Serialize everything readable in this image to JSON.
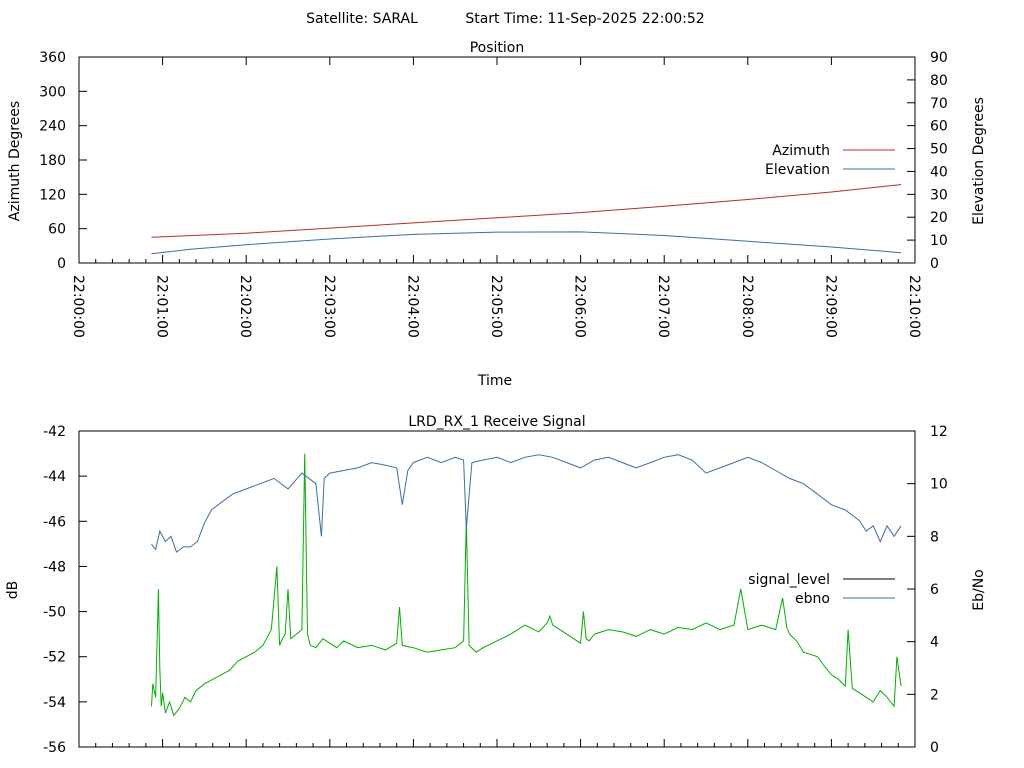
{
  "header": {
    "satellite_label": "Satellite: SARAL",
    "start_time_label": "Start Time: 11-Sep-2025 22:00:52"
  },
  "chart_data": [
    {
      "type": "line",
      "title": "Position",
      "xlabel": "Time",
      "ylabel": "Azimuth Degrees",
      "y2label": "Elevation Degrees",
      "x_ticks": [
        "22:00:00",
        "22:01:00",
        "22:02:00",
        "22:03:00",
        "22:04:00",
        "22:05:00",
        "22:06:00",
        "22:07:00",
        "22:08:00",
        "22:09:00",
        "22:10:00"
      ],
      "xlim_seconds_since_2200": [
        0,
        600
      ],
      "ylim": [
        0,
        360
      ],
      "y_ticks": [
        "0",
        "60",
        "120",
        "180",
        "240",
        "300",
        "360"
      ],
      "y2lim": [
        0,
        90
      ],
      "y2_ticks": [
        "0",
        "10",
        "20",
        "30",
        "40",
        "50",
        "60",
        "70",
        "80",
        "90"
      ],
      "legend_position": "right",
      "grid": false,
      "series": [
        {
          "name": "Azimuth",
          "axis": "left",
          "color": "#b03030",
          "x": [
            52,
            120,
            180,
            240,
            300,
            360,
            420,
            480,
            540,
            590
          ],
          "values": [
            45,
            52,
            61,
            70,
            79,
            88,
            99,
            111,
            124,
            137
          ]
        },
        {
          "name": "Elevation",
          "axis": "right",
          "color": "#3a6fa5",
          "x": [
            52,
            80,
            120,
            180,
            240,
            300,
            360,
            420,
            480,
            540,
            590
          ],
          "values": [
            4,
            6,
            8,
            10.5,
            12.5,
            13.5,
            13.6,
            12,
            9.5,
            7,
            4.5
          ]
        }
      ]
    },
    {
      "type": "line",
      "title": "LRD_RX_1 Receive Signal",
      "ylabel": "dB",
      "y2label": "Eb/No",
      "xlim_seconds_since_2200": [
        0,
        600
      ],
      "ylim": [
        -56,
        -42
      ],
      "y_ticks": [
        "-56",
        "-54",
        "-52",
        "-50",
        "-48",
        "-46",
        "-44",
        "-42"
      ],
      "y2lim": [
        0,
        12
      ],
      "y2_ticks": [
        "0",
        "2",
        "4",
        "6",
        "8",
        "10",
        "12"
      ],
      "legend_position": "right",
      "grid": false,
      "series": [
        {
          "name": "signal_level",
          "axis": "left",
          "color": "#00b000",
          "legend_color": "#000000",
          "x": [
            52,
            53,
            55,
            56,
            57,
            58,
            59,
            60,
            62,
            65,
            68,
            72,
            76,
            80,
            84,
            90,
            96,
            102,
            108,
            114,
            120,
            126,
            132,
            138,
            142,
            144,
            146,
            148,
            150,
            152,
            156,
            160,
            162,
            164,
            166,
            170,
            175,
            180,
            185,
            190,
            200,
            210,
            220,
            228,
            230,
            232,
            240,
            250,
            260,
            270,
            276,
            278,
            280,
            285,
            290,
            300,
            310,
            320,
            330,
            336,
            338,
            340,
            345,
            350,
            355,
            360,
            362,
            364,
            366,
            370,
            380,
            390,
            400,
            410,
            420,
            430,
            440,
            450,
            460,
            470,
            475,
            480,
            490,
            500,
            505,
            508,
            510,
            515,
            520,
            530,
            536,
            540,
            545,
            550,
            552,
            555,
            560,
            565,
            570,
            575,
            580,
            585,
            587,
            590
          ],
          "values": [
            -54.2,
            -53.2,
            -53.8,
            -51.5,
            -49.0,
            -52.5,
            -54.2,
            -53.6,
            -54.5,
            -54.0,
            -54.6,
            -54.3,
            -53.8,
            -54.0,
            -53.5,
            -53.2,
            -53.0,
            -52.8,
            -52.6,
            -52.2,
            -52.0,
            -51.8,
            -51.5,
            -50.8,
            -48.0,
            -51.5,
            -51.2,
            -51.0,
            -49.0,
            -51.2,
            -51.0,
            -50.8,
            -43.0,
            -51.0,
            -51.5,
            -51.6,
            -51.2,
            -51.4,
            -51.6,
            -51.3,
            -51.6,
            -51.5,
            -51.7,
            -51.4,
            -49.8,
            -51.5,
            -51.6,
            -51.8,
            -51.7,
            -51.6,
            -51.3,
            -46.0,
            -51.5,
            -51.8,
            -51.6,
            -51.3,
            -51.0,
            -50.6,
            -50.9,
            -50.5,
            -50.2,
            -50.6,
            -50.8,
            -51.0,
            -51.2,
            -51.4,
            -50.0,
            -51.2,
            -51.3,
            -51.0,
            -50.8,
            -50.9,
            -51.1,
            -50.8,
            -51.0,
            -50.7,
            -50.8,
            -50.5,
            -50.8,
            -50.6,
            -49.0,
            -50.8,
            -50.6,
            -50.8,
            -49.4,
            -50.7,
            -51.0,
            -51.3,
            -51.8,
            -52.0,
            -52.5,
            -52.8,
            -53.0,
            -53.3,
            -50.8,
            -53.4,
            -53.6,
            -53.8,
            -54.0,
            -53.5,
            -53.8,
            -54.2,
            -52.0,
            -53.3
          ]
        },
        {
          "name": "ebno",
          "axis": "right",
          "color": "#3a6fa5",
          "x": [
            52,
            55,
            58,
            62,
            66,
            70,
            75,
            80,
            85,
            90,
            95,
            100,
            110,
            120,
            130,
            140,
            150,
            160,
            170,
            174,
            176,
            180,
            190,
            200,
            210,
            220,
            228,
            232,
            236,
            240,
            250,
            260,
            270,
            276,
            278,
            282,
            290,
            300,
            310,
            320,
            330,
            340,
            350,
            360,
            370,
            380,
            390,
            400,
            410,
            420,
            430,
            440,
            450,
            460,
            470,
            480,
            490,
            500,
            510,
            520,
            530,
            540,
            550,
            560,
            565,
            570,
            575,
            580,
            585,
            590
          ],
          "values": [
            7.7,
            7.5,
            8.2,
            7.8,
            8.0,
            7.4,
            7.6,
            7.6,
            7.8,
            8.5,
            9.0,
            9.2,
            9.6,
            9.8,
            10.0,
            10.2,
            9.8,
            10.4,
            10.0,
            8.0,
            10.2,
            10.4,
            10.5,
            10.6,
            10.8,
            10.7,
            10.6,
            9.2,
            10.5,
            10.8,
            11.0,
            10.8,
            11.0,
            10.9,
            8.3,
            10.8,
            10.9,
            11.0,
            10.8,
            11.0,
            11.1,
            11.0,
            10.8,
            10.6,
            10.9,
            11.0,
            10.8,
            10.6,
            10.8,
            11.0,
            11.1,
            10.9,
            10.4,
            10.6,
            10.8,
            11.0,
            10.8,
            10.5,
            10.2,
            10.0,
            9.6,
            9.2,
            9.0,
            8.6,
            8.2,
            8.4,
            7.8,
            8.4,
            8.0,
            8.4
          ]
        }
      ]
    }
  ]
}
